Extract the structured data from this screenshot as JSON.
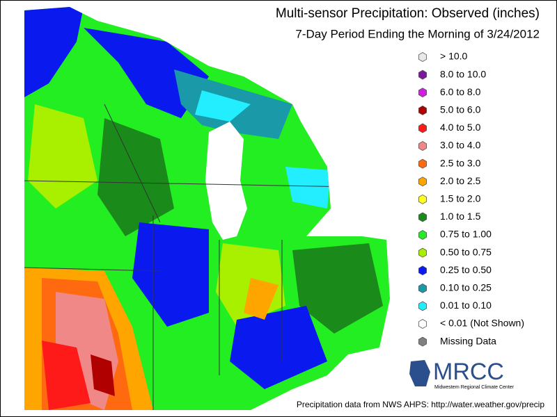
{
  "header": {
    "title": "Multi-sensor Precipitation: Observed (inches)",
    "subtitle": "7-Day Period Ending the Morning of 3/24/2012"
  },
  "legend": {
    "items": [
      {
        "label": "> 10.0",
        "color": "#e8e8e8"
      },
      {
        "label": "8.0 to 10.0",
        "color": "#7a1a9a"
      },
      {
        "label": "6.0 to 8.0",
        "color": "#cc22dd"
      },
      {
        "label": "5.0 to 6.0",
        "color": "#b00000"
      },
      {
        "label": "4.0 to 5.0",
        "color": "#ff1a1a"
      },
      {
        "label": "3.0 to 4.0",
        "color": "#f08888"
      },
      {
        "label": "2.5 to 3.0",
        "color": "#ff6a10"
      },
      {
        "label": "2.0 to 2.5",
        "color": "#ffa500"
      },
      {
        "label": "1.5 to 2.0",
        "color": "#ffff20"
      },
      {
        "label": "1.0 to 1.5",
        "color": "#1a8a1a"
      },
      {
        "label": "0.75 to 1.00",
        "color": "#22ee22"
      },
      {
        "label": "0.50 to 0.75",
        "color": "#a8f000"
      },
      {
        "label": "0.25 to 0.50",
        "color": "#0a1aee"
      },
      {
        "label": "0.10 to 0.25",
        "color": "#1a9aa8"
      },
      {
        "label": "0.01 to 0.10",
        "color": "#22eeff"
      },
      {
        "label": "< 0.01 (Not Shown)",
        "color": "#ffffff"
      },
      {
        "label": "Missing Data",
        "color": "#808080"
      }
    ]
  },
  "logo": {
    "name": "MRCC",
    "subtitle": "Midwestern Regional Climate Center"
  },
  "footer": {
    "source": "Precipitation data from NWS AHPS:  http://water.weather.gov/precip"
  }
}
